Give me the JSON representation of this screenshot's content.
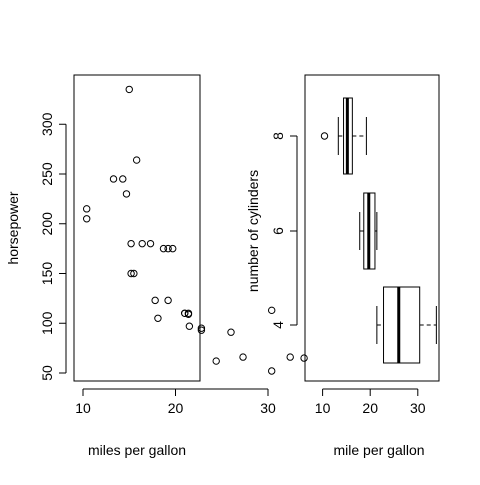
{
  "chart_data": [
    {
      "type": "scatter",
      "title": "",
      "xlabel": "miles per gallon",
      "ylabel": "horsepower",
      "xlim": [
        10,
        34
      ],
      "ylim": [
        50,
        335
      ],
      "xticks": [
        10,
        20,
        30
      ],
      "yticks": [
        50,
        100,
        150,
        200,
        250,
        300
      ],
      "grid": false,
      "points": [
        {
          "x": 21.0,
          "y": 110
        },
        {
          "x": 21.0,
          "y": 110
        },
        {
          "x": 22.8,
          "y": 93
        },
        {
          "x": 21.4,
          "y": 110
        },
        {
          "x": 18.7,
          "y": 175
        },
        {
          "x": 18.1,
          "y": 105
        },
        {
          "x": 14.3,
          "y": 245
        },
        {
          "x": 24.4,
          "y": 62
        },
        {
          "x": 22.8,
          "y": 95
        },
        {
          "x": 19.2,
          "y": 123
        },
        {
          "x": 17.8,
          "y": 123
        },
        {
          "x": 16.4,
          "y": 180
        },
        {
          "x": 17.3,
          "y": 180
        },
        {
          "x": 15.2,
          "y": 180
        },
        {
          "x": 10.4,
          "y": 205
        },
        {
          "x": 10.4,
          "y": 215
        },
        {
          "x": 14.7,
          "y": 230
        },
        {
          "x": 32.4,
          "y": 66
        },
        {
          "x": 30.4,
          "y": 52
        },
        {
          "x": 33.9,
          "y": 65
        },
        {
          "x": 21.5,
          "y": 97
        },
        {
          "x": 15.5,
          "y": 150
        },
        {
          "x": 15.2,
          "y": 150
        },
        {
          "x": 13.3,
          "y": 245
        },
        {
          "x": 19.2,
          "y": 175
        },
        {
          "x": 27.3,
          "y": 66
        },
        {
          "x": 26.0,
          "y": 91
        },
        {
          "x": 30.4,
          "y": 113
        },
        {
          "x": 15.8,
          "y": 264
        },
        {
          "x": 19.7,
          "y": 175
        },
        {
          "x": 15.0,
          "y": 335
        },
        {
          "x": 21.4,
          "y": 109
        }
      ]
    },
    {
      "type": "box",
      "title": "",
      "orientation": "horizontal",
      "xlabel": "mile per gallon",
      "ylabel": "number of cylinders",
      "xlim": [
        10.4,
        33.9
      ],
      "xticks": [
        10,
        20,
        30
      ],
      "categories": [
        "4",
        "6",
        "8"
      ],
      "boxes": [
        {
          "group": "4",
          "whisker_low": 21.4,
          "q1": 22.8,
          "median": 26.0,
          "q3": 30.4,
          "whisker_high": 33.9,
          "outliers": []
        },
        {
          "group": "6",
          "whisker_low": 17.8,
          "q1": 18.65,
          "median": 19.7,
          "q3": 21.0,
          "whisker_high": 21.4,
          "outliers": []
        },
        {
          "group": "8",
          "whisker_low": 13.3,
          "q1": 14.4,
          "median": 15.2,
          "q3": 16.25,
          "whisker_high": 19.2,
          "outliers": [
            10.4
          ]
        }
      ]
    }
  ]
}
